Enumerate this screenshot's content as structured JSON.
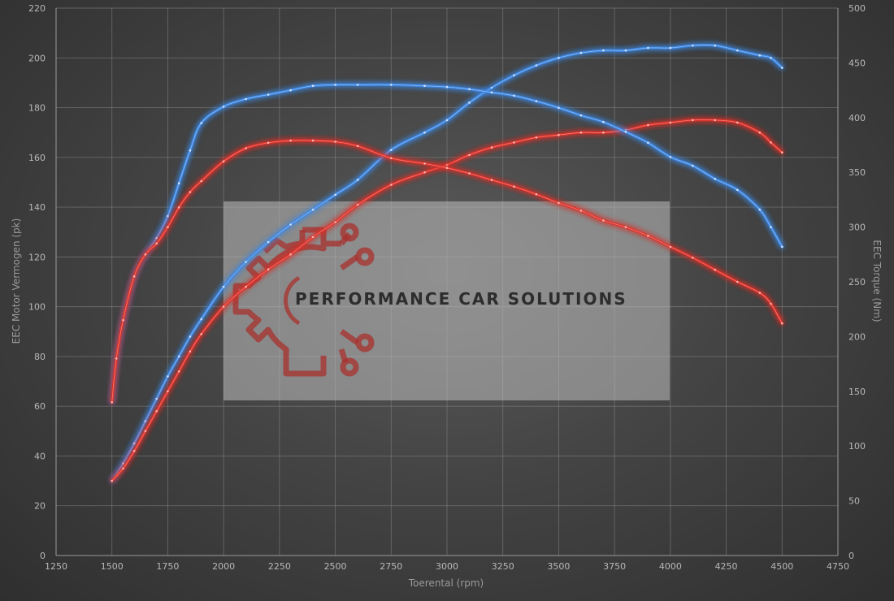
{
  "chart_data": {
    "type": "line",
    "xlabel": "Toerental (rpm)",
    "ylabel_left": "EEC Motor Vermogen (pk)",
    "ylabel_right": "EEC Torque (Nm)",
    "xlim": [
      1250,
      4750
    ],
    "ylim_left": [
      0,
      220
    ],
    "ylim_right": [
      0,
      500
    ],
    "x_ticks": [
      1250,
      1500,
      1750,
      2000,
      2250,
      2500,
      2750,
      3000,
      3250,
      3500,
      3750,
      4000,
      4250,
      4500,
      4750
    ],
    "y_left_ticks": [
      0,
      20,
      40,
      60,
      80,
      100,
      120,
      140,
      160,
      180,
      200,
      220
    ],
    "y_right_ticks": [
      0,
      50,
      100,
      150,
      200,
      250,
      300,
      350,
      400,
      450,
      500
    ],
    "grid": true,
    "series": [
      {
        "axis": "left",
        "color": "#3e86e0",
        "x": [
          1500,
          1550,
          1600,
          1650,
          1700,
          1750,
          1800,
          1850,
          1900,
          2000,
          2100,
          2200,
          2300,
          2400,
          2500,
          2600,
          2750,
          2900,
          3000,
          3100,
          3200,
          3300,
          3400,
          3500,
          3600,
          3700,
          3800,
          3900,
          4000,
          4100,
          4200,
          4300,
          4400,
          4450,
          4500
        ],
        "values": [
          30,
          37,
          45,
          54,
          63,
          72,
          80,
          88,
          95,
          108,
          118,
          126,
          133,
          139,
          145,
          151,
          163,
          170,
          175,
          182,
          188,
          193,
          197,
          200,
          202,
          203,
          203,
          204,
          204,
          205,
          205,
          203,
          201,
          200,
          196
        ]
      },
      {
        "axis": "left",
        "color": "#d9302a",
        "x": [
          1500,
          1550,
          1600,
          1650,
          1700,
          1750,
          1800,
          1850,
          1900,
          2000,
          2100,
          2200,
          2300,
          2400,
          2500,
          2600,
          2750,
          2900,
          3000,
          3100,
          3200,
          3300,
          3400,
          3500,
          3600,
          3700,
          3800,
          3900,
          4000,
          4100,
          4200,
          4300,
          4400,
          4450,
          4500
        ],
        "values": [
          30,
          35,
          42,
          50,
          58,
          66,
          74,
          82,
          89,
          100,
          108,
          115,
          121,
          128,
          134,
          141,
          149,
          154,
          157,
          161,
          164,
          166,
          168,
          169,
          170,
          170,
          171,
          173,
          174,
          175,
          175,
          174,
          170,
          166,
          162
        ]
      },
      {
        "axis": "right",
        "color": "#3e86e0",
        "x": [
          1500,
          1520,
          1550,
          1600,
          1650,
          1700,
          1750,
          1800,
          1850,
          1900,
          2000,
          2100,
          2200,
          2300,
          2400,
          2500,
          2600,
          2750,
          2900,
          3000,
          3100,
          3200,
          3300,
          3400,
          3500,
          3600,
          3700,
          3800,
          3900,
          4000,
          4100,
          4200,
          4300,
          4400,
          4450,
          4500
        ],
        "values": [
          140,
          180,
          215,
          255,
          275,
          290,
          310,
          340,
          370,
          395,
          410,
          417,
          421,
          425,
          429,
          430,
          430,
          430,
          429,
          428,
          426,
          423,
          420,
          415,
          409,
          402,
          396,
          387,
          377,
          364,
          356,
          344,
          334,
          316,
          300,
          282
        ]
      },
      {
        "axis": "right",
        "color": "#d9302a",
        "x": [
          1500,
          1520,
          1550,
          1600,
          1650,
          1700,
          1750,
          1800,
          1850,
          1900,
          2000,
          2100,
          2200,
          2300,
          2400,
          2500,
          2600,
          2750,
          2900,
          3000,
          3100,
          3200,
          3300,
          3400,
          3500,
          3600,
          3700,
          3800,
          3900,
          4000,
          4100,
          4200,
          4300,
          4400,
          4450,
          4500
        ],
        "values": [
          140,
          180,
          215,
          255,
          275,
          285,
          300,
          318,
          332,
          342,
          360,
          372,
          377,
          379,
          379,
          378,
          374,
          363,
          358,
          354,
          349,
          343,
          337,
          330,
          322,
          315,
          306,
          300,
          292,
          282,
          272,
          261,
          250,
          240,
          230,
          212
        ]
      }
    ]
  },
  "watermark": {
    "text": "PERFORMANCE CAR SOLUTIONS",
    "logo_icon": "gear-circuit-icon",
    "text_color": "#2d2d2d",
    "logo_color": "#a8302c"
  }
}
